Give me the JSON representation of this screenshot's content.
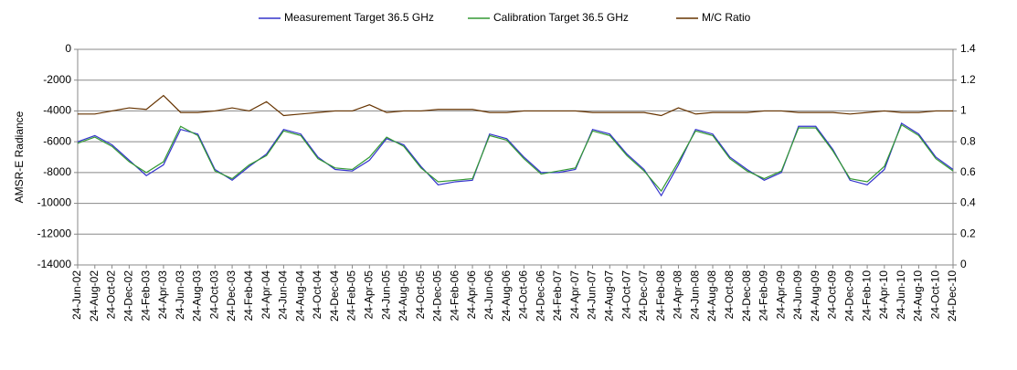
{
  "chart_data": {
    "type": "line",
    "categories": [
      "24-Jun-02",
      "24-Aug-02",
      "24-Oct-02",
      "24-Dec-02",
      "24-Feb-03",
      "24-Apr-03",
      "24-Jun-03",
      "24-Aug-03",
      "24-Oct-03",
      "24-Dec-03",
      "24-Feb-04",
      "24-Apr-04",
      "24-Jun-04",
      "24-Aug-04",
      "24-Oct-04",
      "24-Dec-04",
      "24-Feb-05",
      "24-Apr-05",
      "24-Jun-05",
      "24-Aug-05",
      "24-Oct-05",
      "24-Dec-05",
      "24-Feb-06",
      "24-Apr-06",
      "24-Jun-06",
      "24-Aug-06",
      "24-Oct-06",
      "24-Dec-06",
      "24-Feb-07",
      "24-Apr-07",
      "24-Jun-07",
      "24-Aug-07",
      "24-Oct-07",
      "24-Dec-07",
      "24-Feb-08",
      "24-Apr-08",
      "24-Jun-08",
      "24-Aug-08",
      "24-Oct-08",
      "24-Dec-08",
      "24-Feb-09",
      "24-Apr-09",
      "24-Jun-09",
      "24-Aug-09",
      "24-Oct-09",
      "24-Dec-09",
      "24-Feb-10",
      "24-Apr-10",
      "24-Jun-10",
      "24-Aug-10",
      "24-Oct-10",
      "24-Dec-10"
    ],
    "series": [
      {
        "name": "Measurement Target 36.5 GHz",
        "color": "#3333cc",
        "values": [
          -6000,
          -5600,
          -6200,
          -7200,
          -8200,
          -7500,
          -5200,
          -5500,
          -7800,
          -8500,
          -7600,
          -6800,
          -5200,
          -5500,
          -7000,
          -7800,
          -7900,
          -7200,
          -5800,
          -6200,
          -7600,
          -8800,
          -8600,
          -8500,
          -5500,
          -5800,
          -7000,
          -8000,
          -8000,
          -7800,
          -5200,
          -5500,
          -6800,
          -7800,
          -9500,
          -7500,
          -5200,
          -5500,
          -7000,
          -7800,
          -8500,
          -8000,
          -5000,
          -5000,
          -6500,
          -8500,
          -8800,
          -7800,
          -4800,
          -5500,
          -7000,
          -7800
        ]
      },
      {
        "name": "Calibration Target 36.5 GHz",
        "color": "#339933",
        "values": [
          -6100,
          -5700,
          -6300,
          -7300,
          -8000,
          -7300,
          -5000,
          -5600,
          -7900,
          -8400,
          -7500,
          -6900,
          -5300,
          -5600,
          -7100,
          -7700,
          -7800,
          -7000,
          -5700,
          -6300,
          -7700,
          -8600,
          -8500,
          -8400,
          -5600,
          -5900,
          -7100,
          -8100,
          -7900,
          -7700,
          -5300,
          -5600,
          -6900,
          -7900,
          -9200,
          -7300,
          -5300,
          -5600,
          -7100,
          -7900,
          -8400,
          -7900,
          -5100,
          -5100,
          -6600,
          -8400,
          -8600,
          -7600,
          -4900,
          -5600,
          -7100,
          -7900
        ]
      },
      {
        "name": "M/C Ratio",
        "color": "#663300",
        "axis": "y2",
        "values": [
          0.98,
          0.98,
          1.0,
          1.02,
          1.01,
          1.1,
          0.99,
          0.99,
          1.0,
          1.02,
          1.0,
          1.06,
          0.97,
          0.98,
          0.99,
          1.0,
          1.0,
          1.04,
          0.99,
          1.0,
          1.0,
          1.01,
          1.01,
          1.01,
          0.99,
          0.99,
          1.0,
          1.0,
          1.0,
          1.0,
          0.99,
          0.99,
          0.99,
          0.99,
          0.97,
          1.02,
          0.98,
          0.99,
          0.99,
          0.99,
          1.0,
          1.0,
          0.99,
          0.99,
          0.99,
          0.98,
          0.99,
          1.0,
          0.99,
          0.99,
          1.0,
          1.0
        ]
      }
    ],
    "ylabel": "AMSR-E Radiance",
    "ylim": [
      -14000,
      0
    ],
    "yticks": [
      -14000,
      -12000,
      -10000,
      -8000,
      -6000,
      -4000,
      -2000,
      0
    ],
    "y2lim": [
      0,
      1.4
    ],
    "y2ticks": [
      0,
      0.2,
      0.4,
      0.6,
      0.8,
      1,
      1.2,
      1.4
    ],
    "grid": true,
    "legend": "top"
  }
}
